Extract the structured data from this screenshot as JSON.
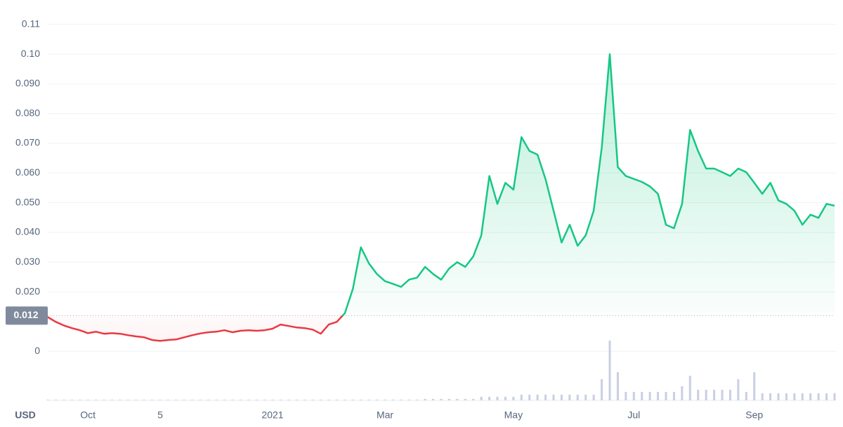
{
  "chart_data": {
    "type": "price-line",
    "currency": "USD",
    "baseline": 0.012,
    "categories": [
      null,
      null,
      null,
      null,
      null,
      "Oct",
      null,
      null,
      null,
      null,
      null,
      null,
      null,
      null,
      "5",
      null,
      null,
      null,
      null,
      null,
      null,
      null,
      null,
      null,
      null,
      null,
      null,
      null,
      "2021",
      null,
      null,
      null,
      null,
      null,
      null,
      null,
      null,
      null,
      null,
      null,
      null,
      null,
      "Mar",
      null,
      null,
      null,
      null,
      null,
      null,
      null,
      null,
      null,
      null,
      null,
      null,
      null,
      null,
      null,
      "May",
      null,
      null,
      null,
      null,
      null,
      null,
      null,
      null,
      null,
      null,
      null,
      null,
      null,
      null,
      "Jul",
      null,
      null,
      null,
      null,
      null,
      null,
      null,
      null,
      null,
      null,
      null,
      null,
      null,
      null,
      "Sep",
      null,
      null,
      null,
      null,
      null,
      null,
      null,
      null,
      null,
      null
    ],
    "values": [
      0.0115,
      0.0099,
      0.0087,
      0.0078,
      0.0071,
      0.0061,
      0.0066,
      0.0059,
      0.0061,
      0.0059,
      0.0054,
      0.005,
      0.0047,
      0.0038,
      0.0035,
      0.0038,
      0.004,
      0.0047,
      0.0054,
      0.006,
      0.0064,
      0.0066,
      0.0071,
      0.0064,
      0.0069,
      0.0071,
      0.0069,
      0.0071,
      0.0076,
      0.009,
      0.0085,
      0.008,
      0.0078,
      0.0073,
      0.0059,
      0.009,
      0.0099,
      0.0128,
      0.021,
      0.035,
      0.0296,
      0.026,
      0.0236,
      0.0227,
      0.0217,
      0.0241,
      0.0248,
      0.0284,
      0.026,
      0.0241,
      0.0279,
      0.03,
      0.0284,
      0.0319,
      0.039,
      0.059,
      0.0496,
      0.0567,
      0.0544,
      0.0721,
      0.0674,
      0.0662,
      0.0579,
      0.0473,
      0.0366,
      0.0426,
      0.0355,
      0.039,
      0.0473,
      0.0686,
      0.1,
      0.062,
      0.059,
      0.058,
      0.057,
      0.0555,
      0.053,
      0.0426,
      0.0414,
      0.0496,
      0.0745,
      0.0674,
      0.0615,
      0.0615,
      0.0603,
      0.059,
      0.0615,
      0.0603,
      0.0567,
      0.053,
      0.0567,
      0.0508,
      0.0496,
      0.0473,
      0.0426,
      0.046,
      0.0449,
      0.0496,
      0.049
    ],
    "volume": [
      1,
      1,
      1,
      1,
      1,
      1,
      1,
      1,
      1,
      1,
      1,
      1,
      1,
      1,
      1,
      1,
      1,
      1,
      1,
      1,
      1,
      1,
      1,
      1,
      1,
      1,
      1,
      1,
      1,
      1,
      1,
      1,
      1,
      1,
      1,
      1,
      1,
      1,
      1,
      1,
      1,
      1,
      1,
      1,
      1,
      1,
      1,
      2,
      2,
      2,
      2,
      2,
      2,
      2,
      5,
      5,
      5,
      5,
      5,
      8,
      8,
      8,
      8,
      8,
      8,
      8,
      8,
      8,
      8,
      30,
      85,
      40,
      12,
      12,
      12,
      12,
      12,
      12,
      12,
      20,
      35,
      15,
      15,
      15,
      15,
      15,
      30,
      12,
      40,
      10,
      10,
      10,
      10,
      10,
      10,
      10,
      10,
      10,
      10
    ],
    "color_up": "#16c784",
    "color_down": "#ea3943",
    "volume_color": "#c9cfe3",
    "ylim": [
      -0.0165,
      0.1135
    ],
    "yticks": [
      0,
      {
        "value": 0.02,
        "label": "0.020"
      },
      {
        "value": 0.03,
        "label": "0.030"
      },
      {
        "value": 0.04,
        "label": "0.040"
      },
      {
        "value": 0.05,
        "label": "0.050"
      },
      {
        "value": 0.06,
        "label": "0.060"
      },
      {
        "value": 0.07,
        "label": "0.070"
      },
      {
        "value": 0.08,
        "label": "0.080"
      },
      {
        "value": 0.09,
        "label": "0.090"
      },
      {
        "value": 0.1,
        "label": "0.10"
      },
      0.11
    ],
    "grid": true
  }
}
